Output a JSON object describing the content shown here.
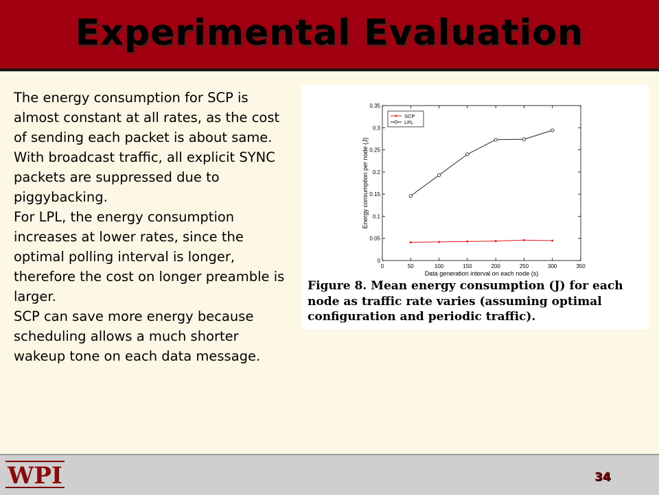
{
  "slide": {
    "title": "Experimental Evaluation",
    "paragraphs": [
      "The energy consumption for SCP is almost constant at all rates, as the cost of sending each packet is about same. With broadcast traffic, all explicit SYNC packets are suppressed due to piggybacking.",
      "For LPL, the energy consumption increases at lower rates, since the optimal polling interval is longer, therefore the cost on longer preamble is larger.",
      "SCP can save more energy because scheduling allows a much shorter wakeup tone on each data message."
    ],
    "figure_caption": "Figure 8. Mean energy consumption (J) for each node as traffic rate varies (assuming optimal configuration and periodic traffic).",
    "logo_text": "WPI",
    "page_number": "34"
  },
  "colors": {
    "header": "#a00010",
    "background": "#fdf8e6",
    "footer": "#cfcfcf",
    "scp_series": "#e01818",
    "lpl_series": "#222222"
  },
  "chart_data": {
    "type": "line",
    "title": "",
    "xlabel": "Data generation interval on each node (s)",
    "ylabel": "Energy consumption per node (J)",
    "xlim": [
      0,
      350
    ],
    "ylim": [
      0,
      0.35
    ],
    "xticks": [
      "0",
      "50",
      "100",
      "150",
      "200",
      "250",
      "300",
      "350"
    ],
    "yticks": [
      "0",
      "0.05",
      "0.1",
      "0.15",
      "0.2",
      "0.25",
      "0.3",
      "0.35"
    ],
    "legend_position": "top-left",
    "grid": false,
    "series": [
      {
        "name": "SCP",
        "marker": "star",
        "x": [
          50,
          100,
          150,
          200,
          250,
          300
        ],
        "y": [
          0.041,
          0.042,
          0.043,
          0.044,
          0.046,
          0.045
        ]
      },
      {
        "name": "LPL",
        "marker": "circle",
        "x": [
          50,
          100,
          150,
          200,
          250,
          300
        ],
        "y": [
          0.146,
          0.193,
          0.24,
          0.273,
          0.274,
          0.294
        ]
      }
    ]
  }
}
